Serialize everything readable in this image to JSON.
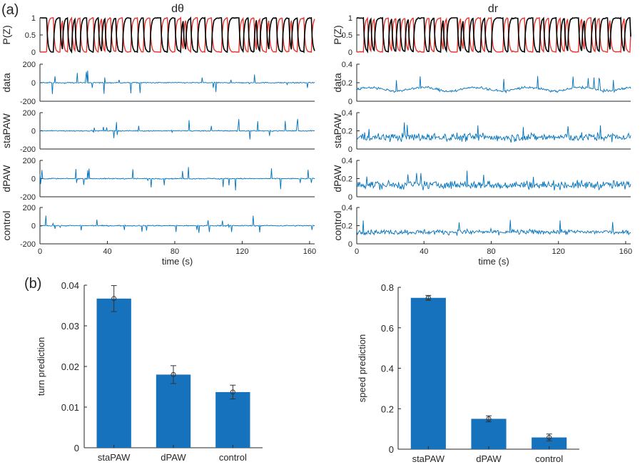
{
  "panel_labels": {
    "a": "(a)",
    "b": "(b)"
  },
  "time_series": {
    "columns": [
      {
        "title": "dθ"
      },
      {
        "title": "dr"
      }
    ],
    "xlabel": "time (s)",
    "xticks": [
      0,
      40,
      80,
      120,
      160
    ],
    "rows": [
      {
        "ylabel": "P(Z)"
      },
      {
        "ylabel": "data"
      },
      {
        "ylabel": "staPAW"
      },
      {
        "ylabel": "dPAW"
      },
      {
        "ylabel": "control"
      }
    ],
    "dtheta_yticks": [
      "200",
      "0",
      "-200"
    ],
    "dr_yticks": [
      "0.4",
      "0.2",
      "0"
    ],
    "pz_yticks": [
      "1",
      "0.5",
      "0"
    ],
    "colors": {
      "line": "#0072BD",
      "state_red": "#E8332A",
      "state_black": "#000000"
    }
  },
  "chart_data": [
    {
      "type": "bar",
      "title": "",
      "ylabel": "turn prediction",
      "categories": [
        "staPAW",
        "dPAW",
        "control"
      ],
      "values": [
        0.0367,
        0.018,
        0.0137
      ],
      "errors": [
        0.0032,
        0.0022,
        0.0017
      ],
      "ylim": [
        0,
        0.04
      ],
      "yticks": [
        "0",
        "0.01",
        "0.02",
        "0.03",
        "0.04"
      ],
      "color": "#1672BD"
    },
    {
      "type": "bar",
      "title": "",
      "ylabel": "speed prediction",
      "categories": [
        "staPAW",
        "dPAW",
        "control"
      ],
      "values": [
        0.748,
        0.15,
        0.058
      ],
      "errors": [
        0.012,
        0.015,
        0.017
      ],
      "ylim": [
        0,
        0.8
      ],
      "yticks": [
        "0",
        "0.2",
        "0.4",
        "0.6",
        "0.8"
      ],
      "color": "#1672BD"
    }
  ]
}
